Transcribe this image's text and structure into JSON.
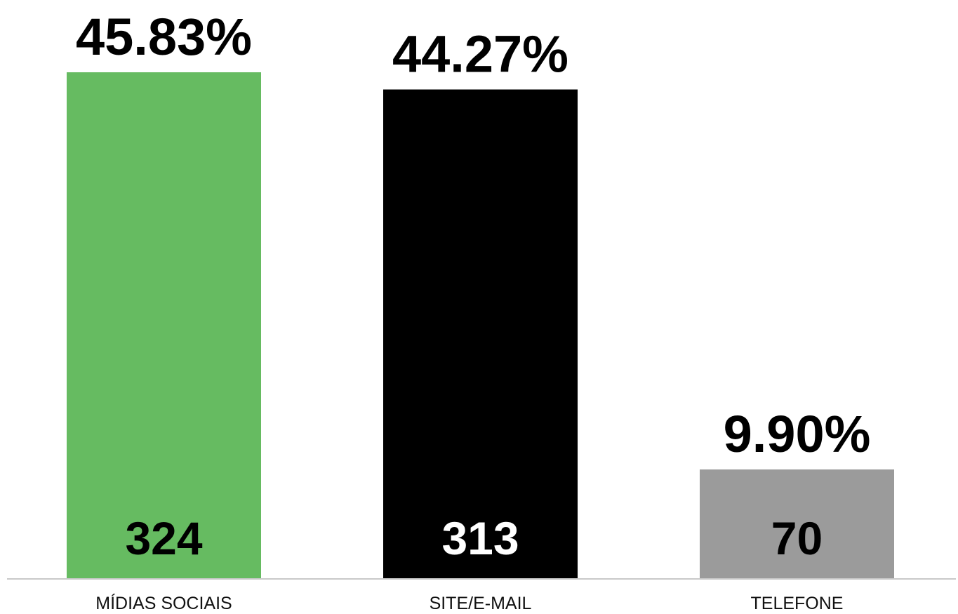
{
  "chart_data": {
    "type": "bar",
    "categories": [
      "MÍDIAS SOCIAIS",
      "SITE/E-MAIL",
      "TELEFONE"
    ],
    "values": [
      324,
      313,
      70
    ],
    "percent_labels": [
      "45.83%",
      "44.27%",
      "9.90%"
    ],
    "count_labels": [
      "324",
      "313",
      "70"
    ],
    "colors": [
      "#66bb61",
      "#000000",
      "#9b9b9b"
    ],
    "count_label_colors": [
      "#000000",
      "#ffffff",
      "#000000"
    ],
    "title": "",
    "xlabel": "",
    "ylabel": "",
    "ylim": [
      0,
      324
    ],
    "grid": false,
    "legend": "none"
  }
}
